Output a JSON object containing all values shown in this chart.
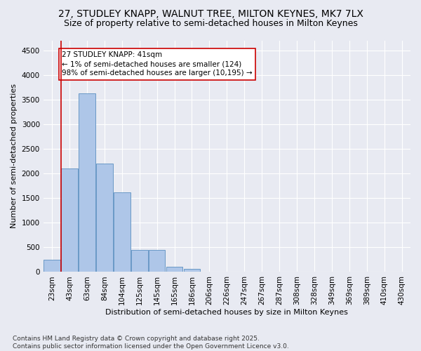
{
  "title": "27, STUDLEY KNAPP, WALNUT TREE, MILTON KEYNES, MK7 7LX",
  "subtitle": "Size of property relative to semi-detached houses in Milton Keynes",
  "xlabel": "Distribution of semi-detached houses by size in Milton Keynes",
  "ylabel": "Number of semi-detached properties",
  "categories": [
    "23sqm",
    "43sqm",
    "63sqm",
    "84sqm",
    "104sqm",
    "125sqm",
    "145sqm",
    "165sqm",
    "186sqm",
    "206sqm",
    "226sqm",
    "247sqm",
    "267sqm",
    "287sqm",
    "308sqm",
    "328sqm",
    "349sqm",
    "369sqm",
    "389sqm",
    "410sqm",
    "430sqm"
  ],
  "values": [
    250,
    2100,
    3620,
    2200,
    1620,
    450,
    450,
    100,
    60,
    0,
    0,
    0,
    0,
    0,
    0,
    0,
    0,
    0,
    0,
    0,
    0
  ],
  "bar_color": "#aec6e8",
  "bar_edge_color": "#5a8fc0",
  "highlight_line_color": "#cc0000",
  "annotation_text": "27 STUDLEY KNAPP: 41sqm\n← 1% of semi-detached houses are smaller (124)\n98% of semi-detached houses are larger (10,195) →",
  "annotation_box_color": "#ffffff",
  "annotation_box_edge": "#cc0000",
  "ylim": [
    0,
    4700
  ],
  "yticks": [
    0,
    500,
    1000,
    1500,
    2000,
    2500,
    3000,
    3500,
    4000,
    4500
  ],
  "bg_color": "#e8eaf2",
  "plot_bg_color": "#e8eaf2",
  "footer": "Contains HM Land Registry data © Crown copyright and database right 2025.\nContains public sector information licensed under the Open Government Licence v3.0.",
  "title_fontsize": 10,
  "subtitle_fontsize": 9,
  "label_fontsize": 8,
  "tick_fontsize": 7.5,
  "footer_fontsize": 6.5,
  "annot_fontsize": 7.5
}
